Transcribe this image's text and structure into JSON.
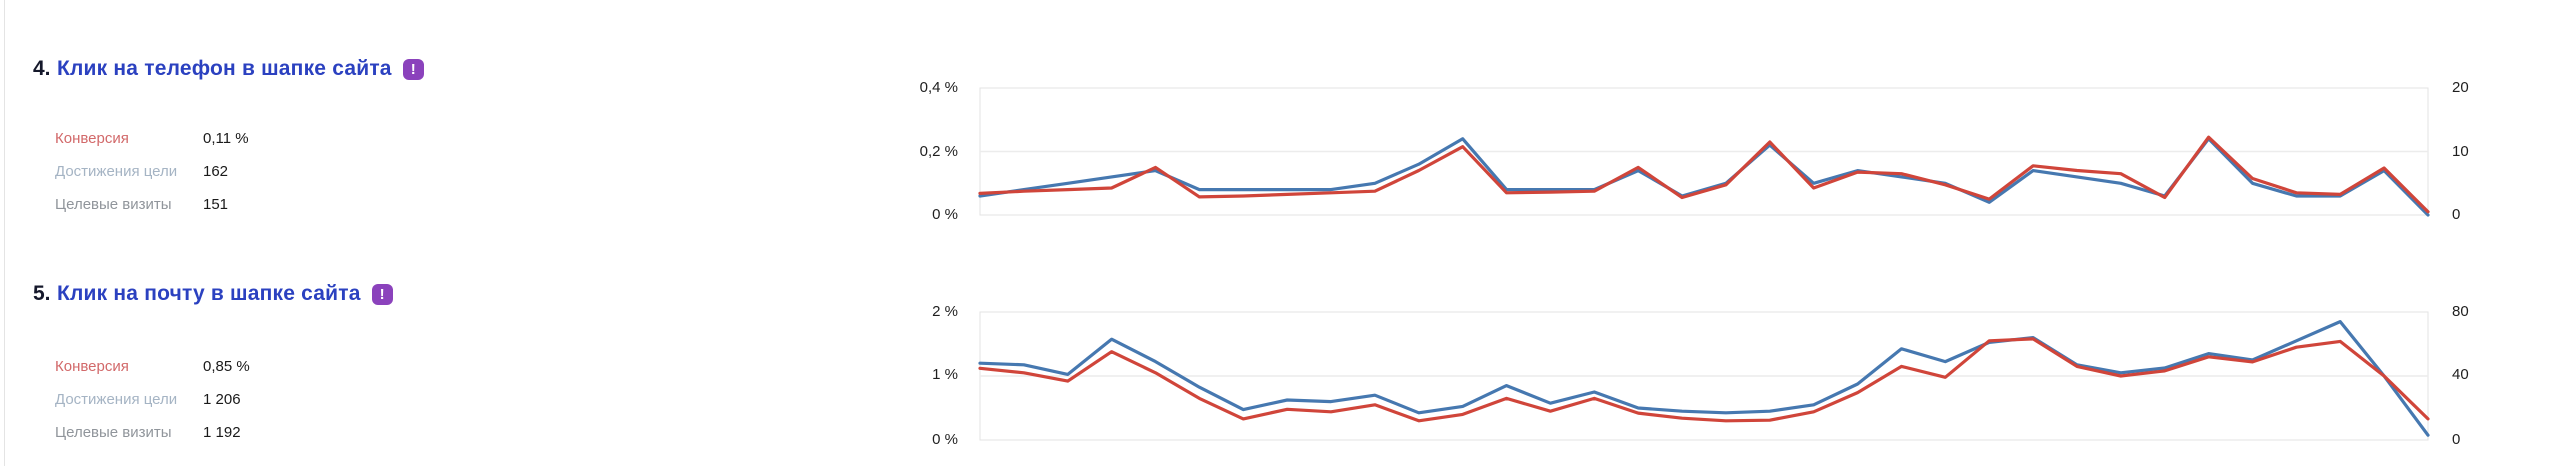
{
  "page": {
    "background": "#ffffff"
  },
  "colors": {
    "goal_title": "#2b41c0",
    "goal_number": "#15182b",
    "badge_bg": "#8b42bc",
    "badge_glyph_color": "#ffffff",
    "conversion_label": "#d2696a",
    "reaches_label": "#a5b4c4",
    "visits_label": "#90959b",
    "value_text": "#1a1a1a",
    "axis_text": "#1f1f1f",
    "line_conversion": "#d0453a",
    "line_reaches": "#4678b0",
    "gridline": "#ececec",
    "plot_border": "#e3e3e3"
  },
  "goals": [
    {
      "number": "4.",
      "title": "Клик на телефон в шапке сайта",
      "badge_glyph": "!",
      "stats": [
        {
          "label": "Конверсия",
          "value": "0,11 %"
        },
        {
          "label": "Достижения цели",
          "value": "162"
        },
        {
          "label": "Целевые визиты",
          "value": "151"
        }
      ]
    },
    {
      "number": "5.",
      "title": "Клик на почту в шапке сайта",
      "badge_glyph": "!",
      "stats": [
        {
          "label": "Конверсия",
          "value": "0,85 %"
        },
        {
          "label": "Достижения цели",
          "value": "1 206"
        },
        {
          "label": "Целевые визиты",
          "value": "1 192"
        }
      ]
    }
  ],
  "chart_data": [
    {
      "type": "line",
      "title": "",
      "goal": "Клик на телефон в шапке сайта",
      "x": {
        "points": 34,
        "labels_visible": false
      },
      "grid": true,
      "legend_visible": false,
      "left_axis": {
        "min": 0,
        "max": 0.4,
        "unit": "%",
        "tick_labels": [
          "0,4 %",
          "0,2 %",
          "0 %"
        ]
      },
      "right_axis": {
        "min": 0,
        "max": 20,
        "tick_labels": [
          "20",
          "10",
          "0"
        ]
      },
      "series": [
        {
          "name": "Достижения цели",
          "axis": "right",
          "color": "#4678b0",
          "values": [
            3,
            4,
            5,
            6,
            7,
            4,
            4,
            4,
            4,
            5,
            8,
            12,
            4,
            4,
            4,
            7,
            3,
            5,
            11,
            5,
            7,
            6,
            5,
            2,
            7,
            6,
            5,
            3,
            12,
            5,
            3,
            3,
            7,
            0
          ]
        },
        {
          "name": "Конверсия",
          "axis": "left",
          "color": "#d0453a",
          "values": [
            0.068,
            0.075,
            0.08,
            0.085,
            0.15,
            0.057,
            0.06,
            0.065,
            0.07,
            0.075,
            0.14,
            0.215,
            0.07,
            0.072,
            0.075,
            0.15,
            0.055,
            0.095,
            0.23,
            0.085,
            0.135,
            0.13,
            0.095,
            0.05,
            0.155,
            0.14,
            0.13,
            0.055,
            0.245,
            0.115,
            0.07,
            0.065,
            0.148,
            0.01
          ]
        }
      ]
    },
    {
      "type": "line",
      "title": "",
      "goal": "Клик на почту в шапке сайта",
      "x": {
        "points": 34,
        "labels_visible": false
      },
      "grid": true,
      "legend_visible": false,
      "left_axis": {
        "min": 0,
        "max": 2,
        "unit": "%",
        "tick_labels": [
          "2 %",
          "1 %",
          "0 %"
        ]
      },
      "right_axis": {
        "min": 0,
        "max": 80,
        "tick_labels": [
          "80",
          "40",
          "0"
        ]
      },
      "series": [
        {
          "name": "Достижения цели",
          "axis": "right",
          "color": "#4678b0",
          "values": [
            48,
            47,
            41,
            63,
            49,
            33,
            19,
            25,
            24,
            28,
            17,
            21,
            34,
            23,
            30,
            20,
            18,
            17,
            18,
            22,
            35,
            57,
            49,
            61,
            64,
            47,
            42,
            45,
            54,
            50,
            62,
            74,
            40,
            3
          ]
        },
        {
          "name": "Конверсия",
          "axis": "left",
          "color": "#d0453a",
          "values": [
            1.12,
            1.05,
            0.92,
            1.38,
            1.05,
            0.65,
            0.33,
            0.48,
            0.44,
            0.55,
            0.3,
            0.4,
            0.65,
            0.45,
            0.65,
            0.42,
            0.34,
            0.3,
            0.31,
            0.44,
            0.74,
            1.15,
            0.98,
            1.55,
            1.58,
            1.15,
            1.0,
            1.08,
            1.3,
            1.22,
            1.45,
            1.54,
            1.0,
            0.33
          ]
        }
      ]
    }
  ]
}
